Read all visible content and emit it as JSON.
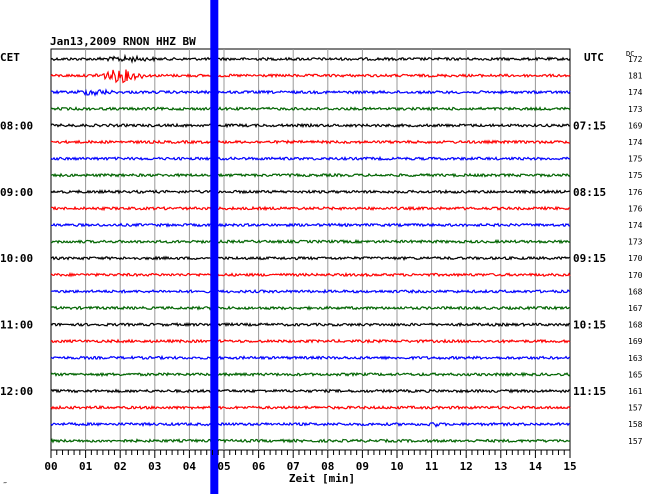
{
  "header": {
    "title": "Jan13,2009   RNON HHZ BW",
    "left_tz": "CET",
    "right_tz": "UTC",
    "dc_label": "DC",
    "corner_mark": "‴"
  },
  "chart_data": {
    "type": "line",
    "title": "Jan13,2009   RNON HHZ BW",
    "xlabel": "Zeit [min]",
    "ylabel": "",
    "x_range": [
      0,
      15
    ],
    "x_ticks": [
      "00",
      "01",
      "02",
      "03",
      "04",
      "05",
      "06",
      "07",
      "08",
      "09",
      "10",
      "11",
      "12",
      "13",
      "14",
      "15"
    ],
    "grid": true,
    "trace_colors": [
      "#000000",
      "#ff0000",
      "#0000ff",
      "#006400"
    ],
    "traces": [
      {
        "dc": "172",
        "event": {
          "start": 1.4,
          "end": 3.0,
          "amp": 1.0
        }
      },
      {
        "dc": "181",
        "event": {
          "start": 1.3,
          "end": 2.7,
          "amp": 3.2
        }
      },
      {
        "dc": "174",
        "event": {
          "start": 0.7,
          "end": 1.8,
          "amp": 1.3
        }
      },
      {
        "dc": "173"
      },
      {
        "dc": "169"
      },
      {
        "dc": "174"
      },
      {
        "dc": "175"
      },
      {
        "dc": "175"
      },
      {
        "dc": "176"
      },
      {
        "dc": "176"
      },
      {
        "dc": "174"
      },
      {
        "dc": "173"
      },
      {
        "dc": "170"
      },
      {
        "dc": "170"
      },
      {
        "dc": "168"
      },
      {
        "dc": "167"
      },
      {
        "dc": "168"
      },
      {
        "dc": "169"
      },
      {
        "dc": "163"
      },
      {
        "dc": "165"
      },
      {
        "dc": "161"
      },
      {
        "dc": "157"
      },
      {
        "dc": "158",
        "event": {
          "start": 10.9,
          "end": 11.2,
          "amp": 1.4
        }
      },
      {
        "dc": "157"
      }
    ],
    "left_time_labels": [
      {
        "trace": 4,
        "text": "08:00"
      },
      {
        "trace": 8,
        "text": "09:00"
      },
      {
        "trace": 12,
        "text": "10:00"
      },
      {
        "trace": 16,
        "text": "11:00"
      },
      {
        "trace": 20,
        "text": "12:00"
      }
    ],
    "right_time_labels": [
      {
        "trace": 4,
        "text": "07:15"
      },
      {
        "trace": 8,
        "text": "08:15"
      },
      {
        "trace": 12,
        "text": "09:15"
      },
      {
        "trace": 16,
        "text": "10:15"
      },
      {
        "trace": 20,
        "text": "11:15"
      }
    ],
    "marker": {
      "minute": 4.72,
      "color": "#0000ff"
    }
  }
}
